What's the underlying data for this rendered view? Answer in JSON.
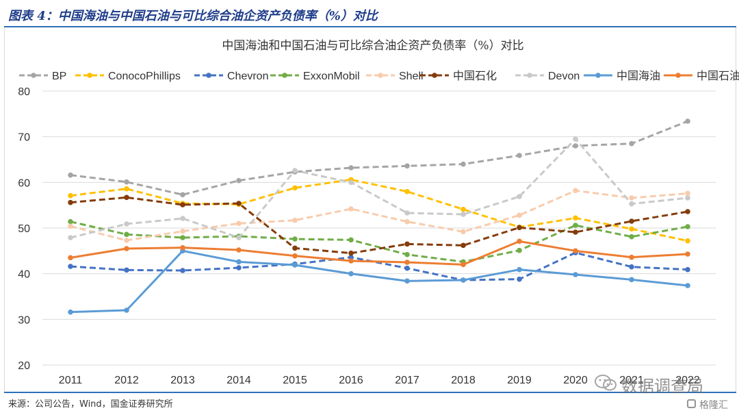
{
  "header": {
    "figure_title": "图表 4：中国海油与中国石油与可比综合油企资产负债率（%）对比"
  },
  "source": "来源：公司公告，Wind，国金证券研究所",
  "watermark": {
    "text": "数据调查局"
  },
  "brand": {
    "text": "格隆汇"
  },
  "chart_data": {
    "type": "line",
    "title": "中国海油和中国石油与可比综合油企资产负债率（%）对比",
    "xlabel": "",
    "ylabel": "",
    "categories": [
      "2011",
      "2012",
      "2013",
      "2014",
      "2015",
      "2016",
      "2017",
      "2018",
      "2019",
      "2020",
      "2021",
      "2022"
    ],
    "ylim": [
      20,
      80
    ],
    "yticks": [
      20,
      30,
      40,
      50,
      60,
      70,
      80
    ],
    "grid": true,
    "legend_position": "top",
    "series": [
      {
        "name": "BP",
        "color": "#a5a5a5",
        "dash": true,
        "values": [
          61.6,
          60.1,
          57.3,
          60.4,
          62.3,
          63.2,
          63.6,
          64.0,
          65.9,
          68.0,
          68.5,
          73.4
        ]
      },
      {
        "name": "ConocoPhillips",
        "color": "#ffc000",
        "dash": true,
        "values": [
          57.1,
          58.6,
          55.4,
          55.2,
          58.8,
          60.6,
          58.0,
          54.1,
          50.2,
          52.2,
          49.8,
          47.2
        ]
      },
      {
        "name": "Chevron",
        "color": "#4472c4",
        "dash": true,
        "values": [
          41.6,
          40.8,
          40.7,
          41.3,
          42.1,
          43.6,
          41.2,
          38.6,
          38.8,
          44.6,
          41.5,
          40.9
        ]
      },
      {
        "name": "ExxonMobil",
        "color": "#70ad47",
        "dash": true,
        "values": [
          51.4,
          48.6,
          47.9,
          48.2,
          47.6,
          47.4,
          44.2,
          42.6,
          45.1,
          50.6,
          48.1,
          50.3
        ]
      },
      {
        "name": "Shell",
        "color": "#f8cbad",
        "dash": true,
        "values": [
          50.4,
          47.3,
          49.3,
          51.0,
          51.7,
          54.2,
          51.4,
          49.2,
          52.8,
          58.2,
          56.6,
          57.6
        ]
      },
      {
        "name": "中国石化",
        "color": "#843c0c",
        "dash": true,
        "values": [
          55.6,
          56.7,
          55.1,
          55.4,
          45.6,
          44.5,
          46.5,
          46.2,
          50.1,
          49.1,
          51.5,
          53.6
        ]
      },
      {
        "name": "Devon",
        "color": "#c9c9c9",
        "dash": true,
        "values": [
          47.9,
          50.9,
          52.1,
          47.9,
          62.6,
          60.0,
          53.3,
          53.0,
          56.9,
          69.5,
          55.3,
          56.6
        ]
      },
      {
        "name": "中国海油",
        "color": "#5b9bd5",
        "dash": false,
        "values": [
          31.6,
          32.0,
          45.0,
          42.6,
          41.9,
          40.0,
          38.4,
          38.6,
          40.9,
          39.8,
          38.7,
          37.4
        ]
      },
      {
        "name": "中国石油",
        "color": "#ed7d31",
        "dash": false,
        "values": [
          43.5,
          45.5,
          45.7,
          45.2,
          43.9,
          42.8,
          42.5,
          42.0,
          47.1,
          45.0,
          43.6,
          44.3
        ]
      }
    ]
  }
}
